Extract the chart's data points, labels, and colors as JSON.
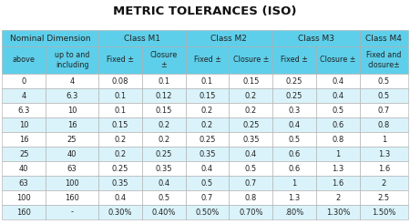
{
  "title": "METRIC TOLERANCES (ISO)",
  "header1_spans": [
    [
      0,
      2,
      "Nominal Dimension"
    ],
    [
      2,
      2,
      "Class M1"
    ],
    [
      4,
      2,
      "Class M2"
    ],
    [
      6,
      2,
      "Class M3"
    ],
    [
      8,
      1,
      "Class M4"
    ]
  ],
  "header2": [
    "above",
    "up to and\nincluding",
    "Fixed ±",
    "Closure\n±",
    "Fixed ±",
    "Closure ±",
    "Fixed ±",
    "Closure ±",
    "Fixed and\nclosure±"
  ],
  "rows": [
    [
      "0",
      "4",
      "0.08",
      "0.1",
      "0.1",
      "0.15",
      "0.25",
      "0.4",
      "0.5"
    ],
    [
      "4",
      "6.3",
      "0.1",
      "0.12",
      "0.15",
      "0.2",
      "0.25",
      "0.4",
      "0.5"
    ],
    [
      "6.3",
      "10",
      "0.1",
      "0.15",
      "0.2",
      "0.2",
      "0.3",
      "0.5",
      "0.7"
    ],
    [
      "10",
      "16",
      "0.15",
      "0.2",
      "0.2",
      "0.25",
      "0.4",
      "0.6",
      "0.8"
    ],
    [
      "16",
      "25",
      "0.2",
      "0.2",
      "0.25",
      "0.35",
      "0.5",
      "0.8",
      "1"
    ],
    [
      "25",
      "40",
      "0.2",
      "0.25",
      "0.35",
      "0.4",
      "0.6",
      "1",
      "1.3"
    ],
    [
      "40",
      "63",
      "0.25",
      "0.35",
      "0.4",
      "0.5",
      "0.6",
      "1.3",
      "1.6"
    ],
    [
      "63",
      "100",
      "0.35",
      "0.4",
      "0.5",
      "0.7",
      "1",
      "1.6",
      "2"
    ],
    [
      "100",
      "160",
      "0.4",
      "0.5",
      "0.7",
      "0.8",
      "1.3",
      "2",
      "2.5"
    ],
    [
      "160",
      "-",
      "0.30%",
      "0.40%",
      "0.50%",
      "0.70%",
      ".80%",
      "1.30%",
      "1.50%"
    ]
  ],
  "col_widths_rel": [
    0.95,
    1.15,
    0.95,
    0.95,
    0.95,
    0.95,
    0.95,
    0.95,
    1.05
  ],
  "header_bg": "#5ecfea",
  "row_bg_white": "#ffffff",
  "row_bg_blue": "#daf3fb",
  "border_color": "#aaaaaa",
  "title_fontsize": 9.5,
  "cell_fontsize": 6.0,
  "header1_fontsize": 6.5,
  "header2_fontsize": 5.8,
  "title_color": "#111111",
  "cell_color": "#222222"
}
